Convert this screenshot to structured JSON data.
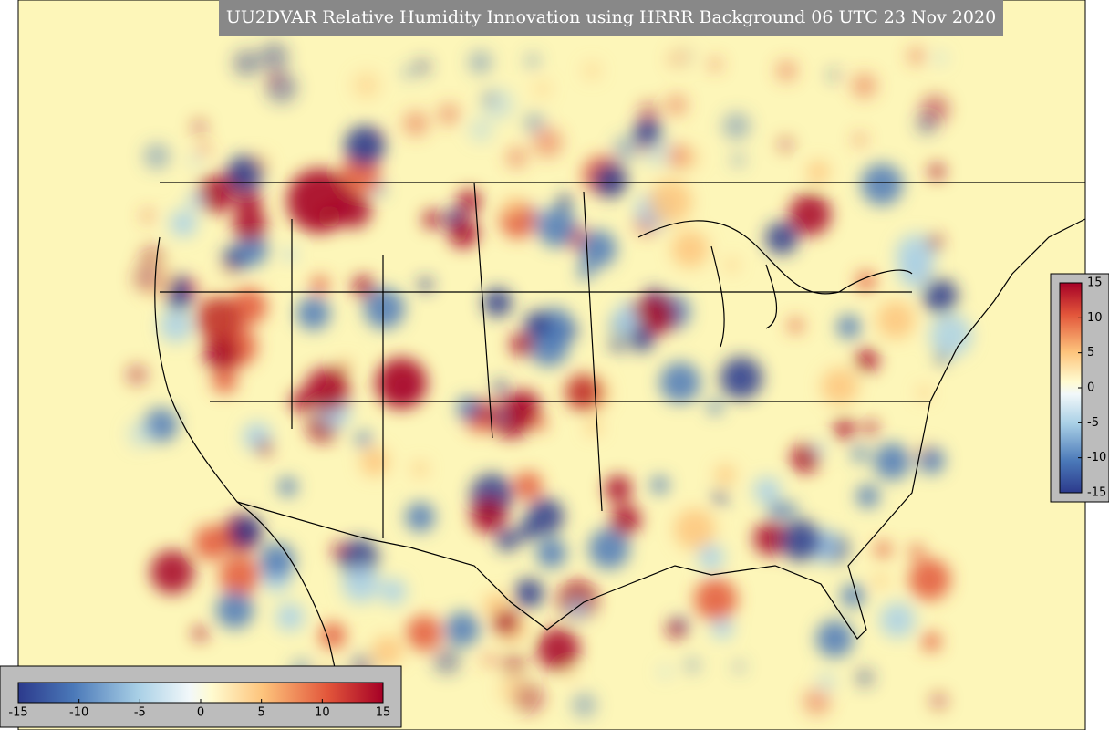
{
  "title": "UU2DVAR Relative Humidity Innovation using HRRR Background 06 UTC 23 Nov 2020",
  "colorbars": [
    {
      "orientation": "horizontal",
      "range": [
        -15,
        15
      ],
      "ticks": [
        -15,
        -10,
        -5,
        0,
        5,
        10,
        15
      ]
    },
    {
      "orientation": "vertical",
      "range": [
        -15,
        15
      ],
      "ticks": [
        15,
        10,
        5,
        0,
        -5,
        -10,
        -15
      ]
    }
  ]
}
